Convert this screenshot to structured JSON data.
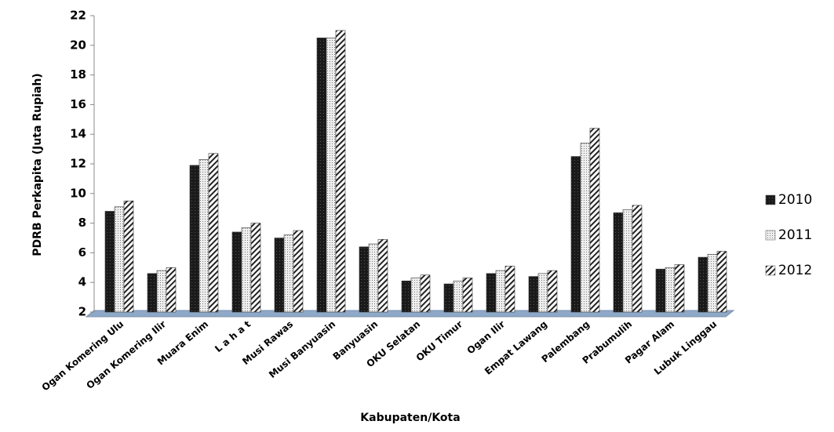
{
  "chart_data": {
    "type": "bar",
    "x_label": "Kabupaten/Kota",
    "y_label": "PDRB Perkapita (Juta Rupiah)",
    "categories": [
      "Ogan Komering Ulu",
      "Ogan Komering Ilir",
      "Muara Enim",
      "L a h a t",
      "Musi Rawas",
      "Musi Banyuasin",
      "Banyuasin",
      "OKU Selatan",
      "OKU Timur",
      "Ogan Ilir",
      "Empat Lawang",
      "Palembang",
      "Prabumulih",
      "Pagar Alam",
      "Lubuk Linggau"
    ],
    "series": [
      {
        "name": "2010",
        "color": "#1a1a1a",
        "hatch": "solid",
        "values": [
          8.8,
          4.6,
          11.9,
          7.4,
          7.0,
          20.5,
          6.4,
          4.1,
          3.9,
          4.6,
          4.4,
          12.5,
          8.7,
          4.9,
          5.7
        ]
      },
      {
        "name": "2011",
        "color": "#d0d0d0",
        "hatch": "dotted",
        "values": [
          9.1,
          4.8,
          12.3,
          7.7,
          7.2,
          20.5,
          6.6,
          4.3,
          4.1,
          4.8,
          4.6,
          13.4,
          8.9,
          5.0,
          5.9
        ]
      },
      {
        "name": "2012",
        "color": "#ffffff",
        "hatch": "diagonal",
        "values": [
          9.5,
          5.0,
          12.7,
          8.0,
          7.5,
          21.0,
          6.9,
          4.5,
          4.3,
          5.1,
          4.8,
          14.4,
          9.2,
          5.2,
          6.1
        ]
      }
    ],
    "ylim": [
      2,
      22
    ],
    "yticks": [
      2,
      4,
      6,
      8,
      10,
      12,
      14,
      16,
      18,
      20,
      22
    ],
    "legend": "right"
  }
}
